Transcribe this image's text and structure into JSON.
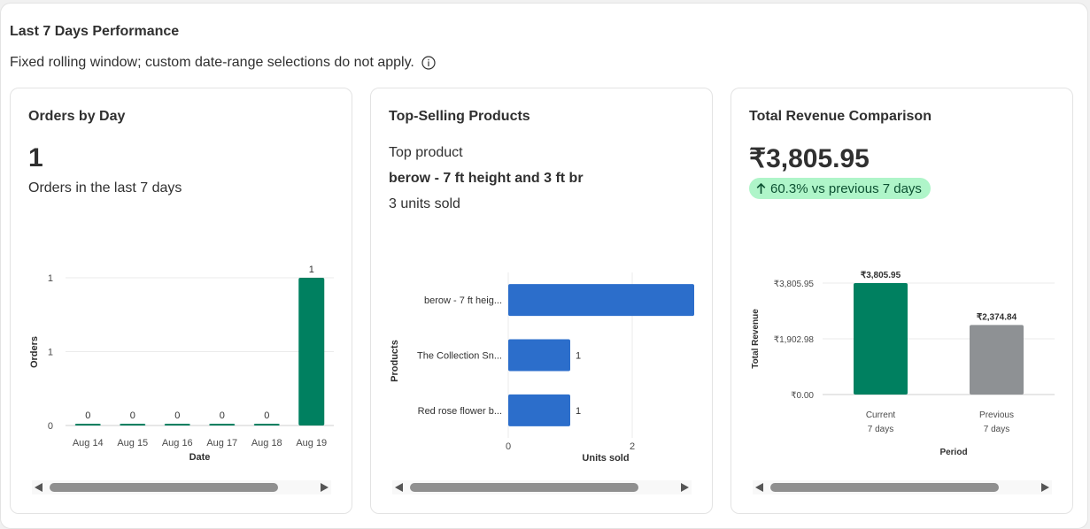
{
  "section": {
    "title": "Last 7 Days Performance",
    "subtitle": "Fixed rolling window; custom date-range selections do not apply."
  },
  "orders_card": {
    "title": "Orders by Day",
    "metric": "1",
    "metric_label": "Orders in the last 7 days"
  },
  "products_card": {
    "title": "Top-Selling Products",
    "top_label": "Top product",
    "top_name": "berow - 7 ft height and 3 ft br",
    "top_units": "3 units sold"
  },
  "revenue_card": {
    "title": "Total Revenue Comparison",
    "metric": "₹3,805.95",
    "badge": "60.3% vs previous 7 days"
  },
  "colors": {
    "green": "#008060",
    "blue": "#2c6ecb",
    "gray": "#8e9194",
    "badge_bg": "#aff5c9"
  },
  "chart_data": [
    {
      "type": "bar",
      "categories": [
        "Aug 14",
        "Aug 15",
        "Aug 16",
        "Aug 17",
        "Aug 18",
        "Aug 19"
      ],
      "values": [
        0,
        0,
        0,
        0,
        0,
        1
      ],
      "data_labels": [
        "0",
        "0",
        "0",
        "0",
        "0",
        "1"
      ],
      "y_ticks": [
        "0",
        "1",
        "1"
      ],
      "xlabel": "Date",
      "ylabel": "Orders",
      "ylim": [
        0,
        1
      ],
      "grid": true
    },
    {
      "type": "bar",
      "orientation": "horizontal",
      "categories": [
        "berow - 7 ft heig...",
        "The Collection Sn...",
        "Red rose flower b..."
      ],
      "values": [
        3,
        1,
        1
      ],
      "data_labels": [
        "",
        "1",
        "1"
      ],
      "x_ticks": [
        "0",
        "2"
      ],
      "xlabel": "Units sold",
      "ylabel": "Products",
      "xlim": [
        0,
        3
      ],
      "grid": true
    },
    {
      "type": "bar",
      "categories": [
        [
          "Current",
          "7 days"
        ],
        [
          "Previous",
          "7 days"
        ]
      ],
      "values": [
        3805.95,
        2374.84
      ],
      "data_labels": [
        "₹3,805.95",
        "₹2,374.84"
      ],
      "y_ticks": [
        "₹0.00",
        "₹1,902.98",
        "₹3,805.95"
      ],
      "xlabel": "Period",
      "ylabel": "Total Revenue",
      "ylim": [
        0,
        3805.95
      ],
      "grid": true
    }
  ]
}
